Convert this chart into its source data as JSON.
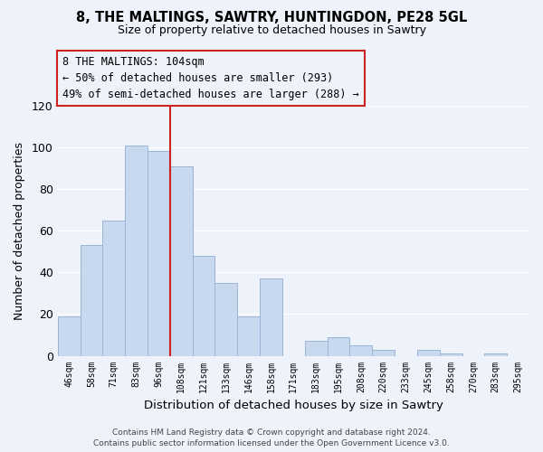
{
  "title": "8, THE MALTINGS, SAWTRY, HUNTINGDON, PE28 5GL",
  "subtitle": "Size of property relative to detached houses in Sawtry",
  "xlabel": "Distribution of detached houses by size in Sawtry",
  "ylabel": "Number of detached properties",
  "footer_line1": "Contains HM Land Registry data © Crown copyright and database right 2024.",
  "footer_line2": "Contains public sector information licensed under the Open Government Licence v3.0.",
  "categories": [
    "46sqm",
    "58sqm",
    "71sqm",
    "83sqm",
    "96sqm",
    "108sqm",
    "121sqm",
    "133sqm",
    "146sqm",
    "158sqm",
    "171sqm",
    "183sqm",
    "195sqm",
    "208sqm",
    "220sqm",
    "233sqm",
    "245sqm",
    "258sqm",
    "270sqm",
    "283sqm",
    "295sqm"
  ],
  "values": [
    19,
    53,
    65,
    101,
    98,
    91,
    48,
    35,
    19,
    37,
    0,
    7,
    9,
    5,
    3,
    0,
    3,
    1,
    0,
    1,
    0
  ],
  "bar_color": "#c8d8ee",
  "bar_edge_color": "#9ab5d5",
  "bg_color": "#eef2fb",
  "grid_color": "#ffffff",
  "annotation_box_text": "8 THE MALTINGS: 104sqm\n← 50% of detached houses are smaller (293)\n49% of semi-detached houses are larger (288) →",
  "annotation_box_edge_color": "#cc2222",
  "property_line_color": "#cc2222",
  "ylim": [
    0,
    120
  ],
  "yticks": [
    0,
    20,
    40,
    60,
    80,
    100,
    120
  ]
}
